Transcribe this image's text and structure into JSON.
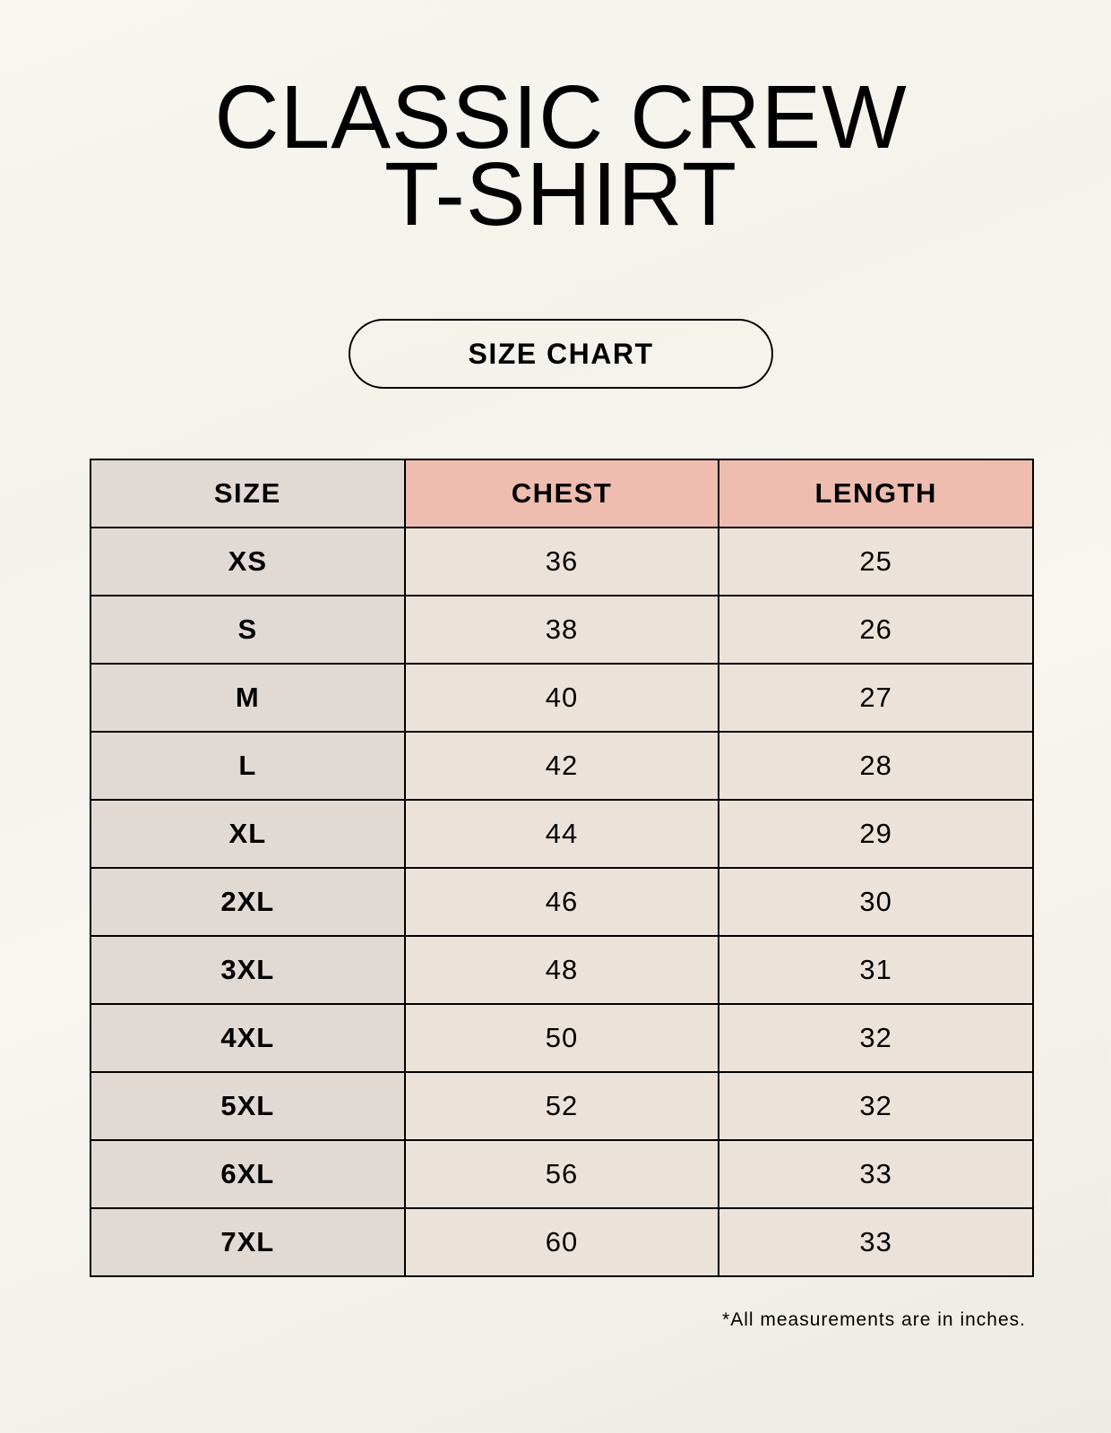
{
  "title": {
    "line1": "CLASSIC CREW",
    "line2": "T-SHIRT"
  },
  "badge": "SIZE CHART",
  "table": {
    "headers": [
      "SIZE",
      "CHEST",
      "LENGTH"
    ],
    "rows": [
      [
        "XS",
        "36",
        "25"
      ],
      [
        "S",
        "38",
        "26"
      ],
      [
        "M",
        "40",
        "27"
      ],
      [
        "L",
        "42",
        "28"
      ],
      [
        "XL",
        "44",
        "29"
      ],
      [
        "2XL",
        "46",
        "30"
      ],
      [
        "3XL",
        "48",
        "31"
      ],
      [
        "4XL",
        "50",
        "32"
      ],
      [
        "5XL",
        "52",
        "32"
      ],
      [
        "6XL",
        "56",
        "33"
      ],
      [
        "7XL",
        "60",
        "33"
      ]
    ]
  },
  "footnote": "*All measurements are in inches.",
  "colors": {
    "size_column": "#e1d9d3",
    "header_accent": "#eebdaf",
    "value_cells": "#ebe3d9"
  }
}
